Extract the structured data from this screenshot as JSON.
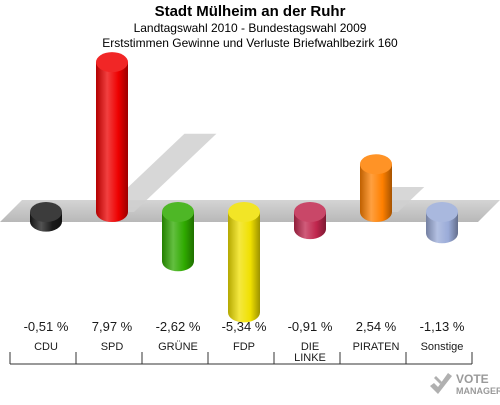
{
  "header": {
    "title": "Stadt Mülheim an der Ruhr",
    "subtitle1": "Landtagswahl 2010 - Bundestagswahl 2009",
    "subtitle2": "Erststimmen Gewinne und Verluste Briefwahlbezirk 160"
  },
  "chart_data": {
    "type": "bar",
    "categories": [
      "CDU",
      "SPD",
      "GRÜNE",
      "FDP",
      "DIE LINKE",
      "PIRATEN",
      "Sonstige"
    ],
    "category_lines": [
      [
        "CDU"
      ],
      [
        "SPD"
      ],
      [
        "GRÜNE"
      ],
      [
        "FDP"
      ],
      [
        "DIE",
        "LINKE"
      ],
      [
        "PIRATEN"
      ],
      [
        "Sonstige"
      ]
    ],
    "values": [
      -0.51,
      7.97,
      -2.62,
      -5.34,
      -0.91,
      2.54,
      -1.13
    ],
    "value_labels": [
      "-0,51 %",
      "7,97 %",
      "-2,62 %",
      "-5,34 %",
      "-0,91 %",
      "2,54 %",
      "-1,13 %"
    ],
    "colors": [
      "#1a1a1a",
      "#ee0000",
      "#2faa00",
      "#f0e000",
      "#c0264d",
      "#ff8000",
      "#9aabd8"
    ],
    "title": "Stadt Mülheim an der Ruhr"
  },
  "watermark": {
    "line1": "VOTE",
    "line2": "MANAGER"
  }
}
